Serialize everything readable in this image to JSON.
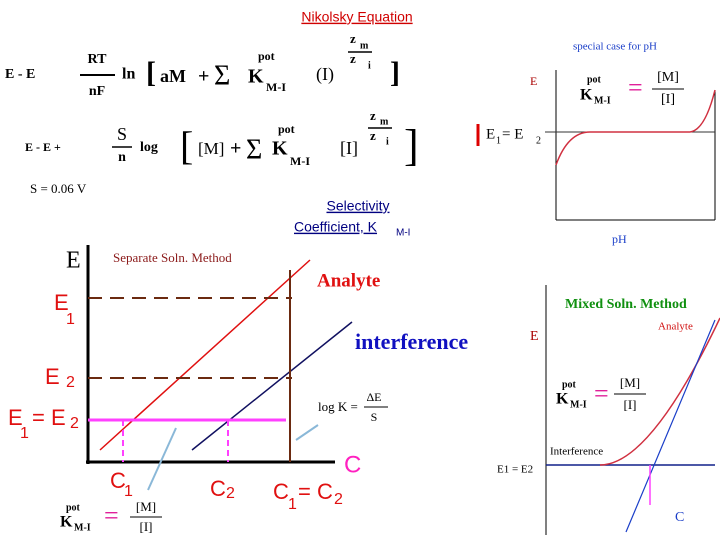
{
  "title": "Nikolsky Equation",
  "equation_1": {
    "lhs": "E - E",
    "num": "RT",
    "den": "nF",
    "fn": "ln",
    "open": "[",
    "term": "aM",
    "plus": "+",
    "sum": "Σ",
    "k": "K",
    "k_sup": "pot",
    "k_sub": "M-I",
    "ion": "(I)",
    "exp_num": "z",
    "exp_num_sub": "m",
    "exp_den": "z",
    "exp_den_sub": "i",
    "close": "]"
  },
  "equation_2": {
    "lhs": "E - E +",
    "num": "S",
    "den": "n",
    "fn": "log",
    "open": "[",
    "term": "[M]",
    "plus": "+",
    "sum": "Σ",
    "k": "K",
    "k_sup": "pot",
    "k_sub": "M-I",
    "ion": "[I]",
    "exp_num": "z",
    "exp_num_sub": "m",
    "exp_den": "z",
    "exp_den_sub": "i",
    "close": "]"
  },
  "s_value": "S = 0.06 V",
  "selectivity": {
    "line1": "Selectivity",
    "line2": "Coefficient, K",
    "line2_sub": "M-I"
  },
  "ph_panel": {
    "caption": "special case for pH",
    "y_label": "E",
    "k": "K",
    "k_sup": "pot",
    "k_sub": "M-I",
    "equals": "=",
    "num": "[M]",
    "den": "[I]",
    "level": "E",
    "level_sub_1": "1",
    "level_eq": "= E",
    "level_sub_2": "2",
    "x_label": "pH"
  },
  "separate_panel": {
    "y_label": "E",
    "caption": "Separate Soln. Method",
    "analyte": "Analyte",
    "interference": "interference",
    "e1": "E",
    "e1_sub": "1",
    "e2": "E",
    "e2_sub": "2",
    "e12": "E",
    "e12_sub_1": "1",
    "e12_eq": "= E",
    "e12_sub_2": "2",
    "c1": "C",
    "c1_sub": "1",
    "c2": "C",
    "c2_sub": "2",
    "c12": "C",
    "c12_sub_1": "1",
    "c12_eq": "= C",
    "c12_sub_2": "2",
    "x_label": "C",
    "logk": "log K =",
    "logk_num": "ΔE",
    "logk_den": "S",
    "k": "K",
    "k_sup": "pot",
    "k_sub": "M-I",
    "equals": "=",
    "num": "[M]",
    "den": "[I]"
  },
  "mixed_panel": {
    "caption": "Mixed Soln. Method",
    "analyte": "Analyte",
    "y_label": "E",
    "k": "K",
    "k_sup": "pot",
    "k_sub": "M-I",
    "equals": "=",
    "num": "[M]",
    "den": "[I]",
    "interference": "Interference",
    "level": "E1 = E2",
    "x_label": "C"
  }
}
